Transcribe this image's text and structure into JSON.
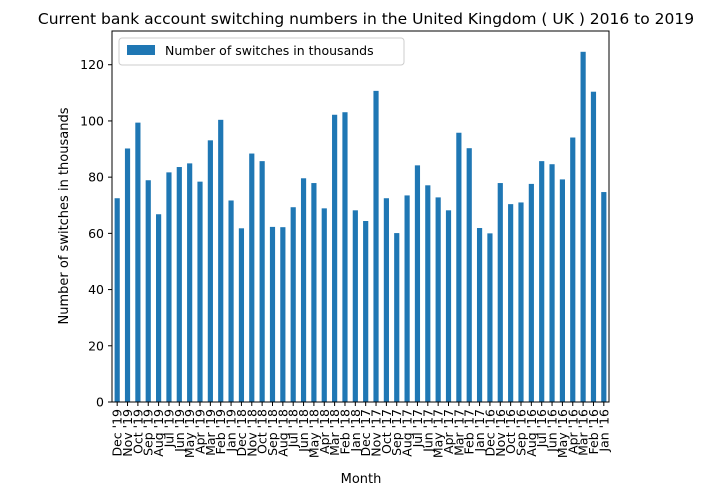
{
  "chart_data": {
    "type": "bar",
    "title": "Current bank account switching numbers in the United Kingdom ( UK ) 2016 to 2019",
    "xlabel": "Month",
    "ylabel": "Number of switches in thousands",
    "ylim": [
      0,
      132
    ],
    "yticks": [
      0,
      20,
      40,
      60,
      80,
      100,
      120
    ],
    "legend": "top-left",
    "color": "#1f77b4",
    "series": [
      {
        "name": "Number of switches in thousands",
        "values": [
          72.5,
          90.2,
          99.4,
          78.9,
          66.8,
          81.7,
          83.6,
          84.9,
          78.4,
          93.1,
          100.4,
          71.7,
          61.8,
          88.4,
          85.7,
          62.3,
          62.2,
          69.3,
          79.6,
          77.9,
          68.9,
          102.2,
          103.1,
          68.2,
          64.4,
          110.7,
          72.5,
          60.1,
          73.5,
          84.2,
          77.1,
          72.8,
          68.2,
          95.8,
          90.3,
          61.9,
          60.0,
          77.9,
          70.4,
          71.0,
          77.6,
          85.7,
          84.6,
          79.2,
          94.1,
          124.6,
          110.4,
          74.7
        ]
      }
    ],
    "categories": [
      "Dec '19",
      "Nov '19",
      "Oct '19",
      "Sep '19",
      "Aug '19",
      "Jul '19",
      "Jun '19",
      "May '19",
      "Apr '19",
      "Mar '19",
      "Feb '19",
      "Jan '19",
      "Dec '18",
      "Nov '18",
      "Oct '18",
      "Sep '18",
      "Aug '18",
      "Jul '18",
      "Jun '18",
      "May '18",
      "Apr '18",
      "Mar '18",
      "Feb '18",
      "Jan '18",
      "Dec '17",
      "Nov '17",
      "Oct '17",
      "Sep '17",
      "Aug '17",
      "Jul '17",
      "Jun '17",
      "May '17",
      "Apr '17",
      "Mar '17",
      "Feb '17",
      "Jan '17",
      "Dec '16",
      "Nov '16",
      "Oct '16",
      "Sep '16",
      "Aug '16",
      "Jul '16",
      "Jun '16",
      "May '16",
      "Apr '16",
      "Mar '16",
      "Feb '16",
      "Jan '16"
    ]
  }
}
